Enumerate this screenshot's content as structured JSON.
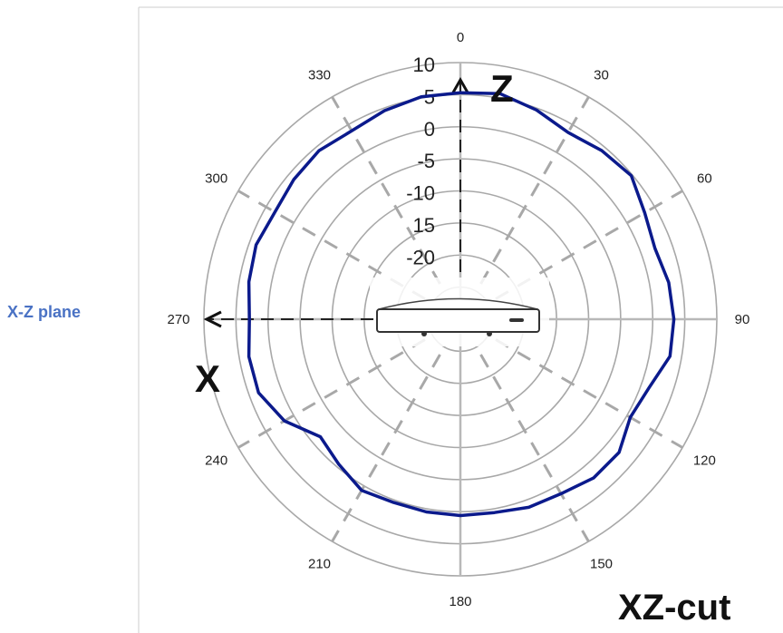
{
  "labels": {
    "plane": "X-Z plane",
    "cut": "XZ-cut",
    "axis_z": "Z",
    "axis_x": "X"
  },
  "chart_data": {
    "type": "polar-line",
    "title": "XZ-cut",
    "angle_ticks": [
      "0",
      "30",
      "60",
      "90",
      "120",
      "150",
      "180",
      "210",
      "240",
      "270",
      "300",
      "330"
    ],
    "radial_ticks": [
      "10",
      "5",
      "0",
      "-5",
      "-10",
      "15",
      "-20"
    ],
    "radial_range": [
      -30,
      10
    ],
    "series": [
      {
        "color": "#0b1a8c",
        "points": [
          {
            "theta": 0,
            "r": 5.3
          },
          {
            "theta": 10,
            "r": 5.7
          },
          {
            "theta": 20,
            "r": 4.7
          },
          {
            "theta": 30,
            "r": 3.6
          },
          {
            "theta": 40,
            "r": 4.3
          },
          {
            "theta": 50,
            "r": 4.8
          },
          {
            "theta": 60,
            "r": 3.2
          },
          {
            "theta": 70,
            "r": 2.3
          },
          {
            "theta": 80,
            "r": 3.0
          },
          {
            "theta": 90,
            "r": 3.3
          },
          {
            "theta": 100,
            "r": 3.2
          },
          {
            "theta": 110,
            "r": 1.3
          },
          {
            "theta": 120,
            "r": 0.6
          },
          {
            "theta": 130,
            "r": 2.3
          },
          {
            "theta": 140,
            "r": 2.3
          },
          {
            "theta": 150,
            "r": 1.4
          },
          {
            "theta": 160,
            "r": 1.2
          },
          {
            "theta": 170,
            "r": 0.6
          },
          {
            "theta": 180,
            "r": 0.6
          },
          {
            "theta": 190,
            "r": 0.5
          },
          {
            "theta": 200,
            "r": 0.4
          },
          {
            "theta": 210,
            "r": 0.8
          },
          {
            "theta": 220,
            "r": -0.5
          },
          {
            "theta": 230,
            "r": -1.5
          },
          {
            "theta": 240,
            "r": 1.7
          },
          {
            "theta": 250,
            "r": 3.5
          },
          {
            "theta": 260,
            "r": 3.5
          },
          {
            "theta": 270,
            "r": 2.9
          },
          {
            "theta": 280,
            "r": 3.5
          },
          {
            "theta": 290,
            "r": 3.9
          },
          {
            "theta": 300,
            "r": 3.4
          },
          {
            "theta": 310,
            "r": 3.9
          },
          {
            "theta": 320,
            "r": 4.3
          },
          {
            "theta": 330,
            "r": 3.9
          },
          {
            "theta": 340,
            "r": 4.6
          },
          {
            "theta": 350,
            "r": 5.2
          }
        ]
      }
    ],
    "grid": true
  }
}
